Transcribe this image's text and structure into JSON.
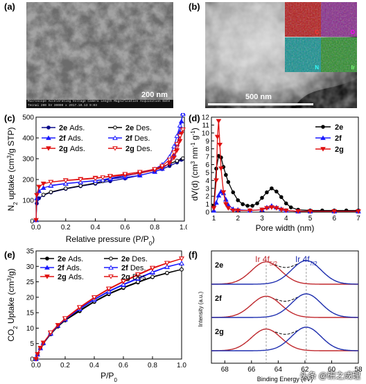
{
  "panels": {
    "a": {
      "label": "(a)",
      "scale_bar": "200 nm",
      "info_header": "Microscope Accelerating Voltage Camera Length Magnification Acquisition Date",
      "info_values": "Tecnai     200 kV     30000 x     2017.10.13  9:03"
    },
    "b": {
      "label": "(b)",
      "scale_bar": "500 nm",
      "maps": [
        {
          "element": "C",
          "color": "#d11a1a"
        },
        {
          "element": "O",
          "color": "#9b2da0"
        },
        {
          "element": "N",
          "color": "#12a6a6"
        },
        {
          "element": "Ir",
          "color": "#2fa12f"
        }
      ]
    },
    "c": {
      "label": "(c)"
    },
    "d": {
      "label": "(d)"
    },
    "e": {
      "label": "(e)"
    },
    "f": {
      "label": "(f)"
    }
  },
  "watermark": "头条 @研之成理",
  "chart_data": [
    {
      "id": "c",
      "type": "line",
      "xlabel": "Relative pressure (P/P0)",
      "xlabel_parts": {
        "main": "Relative pressure (P/P",
        "sub": "0",
        "tail": ")"
      },
      "ylabel_parts": {
        "a": "N",
        "sub1": "2",
        "b": " uptake (cm",
        "sup": "3",
        "c": "/g STP)"
      },
      "xlim": [
        0,
        1
      ],
      "ylim": [
        0,
        500
      ],
      "xticks": [
        "0.0",
        "0.2",
        "0.4",
        "0.6",
        "0.8",
        "1.0"
      ],
      "yticks": [
        "0",
        "100",
        "200",
        "300",
        "400",
        "500"
      ],
      "series": [
        {
          "name": "2e Ads.",
          "tag": "2e",
          "kind": "Ads.",
          "color": "#0a0a8a",
          "marker": "circle-filled",
          "x": [
            0.0,
            0.005,
            0.02,
            0.05,
            0.1,
            0.2,
            0.3,
            0.4,
            0.5,
            0.6,
            0.7,
            0.8,
            0.85,
            0.9,
            0.95,
            0.98,
            0.99
          ],
          "y": [
            5,
            85,
            110,
            125,
            138,
            155,
            168,
            180,
            192,
            205,
            220,
            238,
            250,
            265,
            282,
            295,
            300
          ]
        },
        {
          "name": "2e Des.",
          "tag": "2e",
          "kind": "Des.",
          "color": "#000000",
          "marker": "circle-open",
          "x": [
            0.99,
            0.95,
            0.9,
            0.85,
            0.8,
            0.7,
            0.6,
            0.5,
            0.45,
            0.4,
            0.3,
            0.2,
            0.1,
            0.05
          ],
          "y": [
            302,
            290,
            275,
            262,
            250,
            232,
            217,
            203,
            192,
            183,
            170,
            157,
            140,
            127
          ]
        },
        {
          "name": "2f Ads.",
          "tag": "2f",
          "kind": "Ads.",
          "color": "#1a1aff",
          "marker": "triangle-filled",
          "x": [
            0.0,
            0.005,
            0.02,
            0.05,
            0.1,
            0.2,
            0.3,
            0.4,
            0.5,
            0.6,
            0.7,
            0.8,
            0.85,
            0.9,
            0.93,
            0.95,
            0.97,
            0.98,
            0.99
          ],
          "y": [
            5,
            110,
            145,
            160,
            170,
            180,
            187,
            194,
            202,
            210,
            220,
            237,
            252,
            280,
            320,
            370,
            430,
            480,
            520
          ]
        },
        {
          "name": "2f Des.",
          "tag": "2f",
          "kind": "Des.",
          "color": "#1a1aff",
          "marker": "triangle-open",
          "x": [
            0.99,
            0.97,
            0.95,
            0.93,
            0.9,
            0.85,
            0.8,
            0.7,
            0.6,
            0.5,
            0.45,
            0.4,
            0.3,
            0.2,
            0.1
          ],
          "y": [
            515,
            460,
            410,
            360,
            310,
            272,
            250,
            230,
            218,
            207,
            199,
            195,
            188,
            181,
            172
          ]
        },
        {
          "name": "2g Ads.",
          "tag": "2g",
          "kind": "Ads.",
          "color": "#e01010",
          "marker": "triangle-down-filled",
          "x": [
            0.0,
            0.005,
            0.02,
            0.05,
            0.1,
            0.2,
            0.3,
            0.4,
            0.5,
            0.6,
            0.7,
            0.8,
            0.85,
            0.9,
            0.93,
            0.95,
            0.97,
            0.98,
            0.99
          ],
          "y": [
            5,
            125,
            165,
            180,
            188,
            196,
            202,
            208,
            214,
            221,
            230,
            245,
            258,
            278,
            305,
            340,
            385,
            420,
            440
          ]
        },
        {
          "name": "2g Des.",
          "tag": "2g",
          "kind": "Des.",
          "color": "#e01010",
          "marker": "triangle-down-open",
          "x": [
            0.99,
            0.97,
            0.95,
            0.93,
            0.9,
            0.85,
            0.8,
            0.7,
            0.6,
            0.5,
            0.45,
            0.4,
            0.3,
            0.2,
            0.1
          ],
          "y": [
            440,
            410,
            370,
            330,
            295,
            265,
            250,
            236,
            226,
            217,
            210,
            205,
            200,
            195,
            188
          ]
        }
      ],
      "legend": "top-left"
    },
    {
      "id": "d",
      "type": "line",
      "xlabel": "Pore width (nm)",
      "ylabel_parts": {
        "a": "dV(d) (cm",
        "sup1": "3",
        "b": " nm",
        "sup2": "-1",
        "c": " g",
        "sup3": "-1",
        "d": ")"
      },
      "xlim": [
        0.9,
        7
      ],
      "ylim": [
        0,
        12
      ],
      "xticks": [
        "1",
        "2",
        "3",
        "4",
        "5",
        "6",
        "7"
      ],
      "xtick_values": [
        1,
        2,
        3,
        4,
        5,
        6,
        7
      ],
      "yticks": [
        "0",
        "1",
        "2",
        "3",
        "4",
        "5",
        "6",
        "7",
        "8",
        "9",
        "10",
        "11",
        "12"
      ],
      "series": [
        {
          "name": "2e",
          "color": "#000000",
          "marker": "circle-filled",
          "x": [
            1.0,
            1.1,
            1.2,
            1.3,
            1.4,
            1.5,
            1.6,
            1.8,
            2.0,
            2.2,
            2.4,
            2.6,
            2.8,
            3.0,
            3.2,
            3.4,
            3.6,
            3.8,
            4.0,
            4.2,
            4.5,
            5.0,
            5.5,
            6.0,
            6.5,
            7.0
          ],
          "y": [
            0.8,
            5.5,
            7.1,
            6.9,
            5.7,
            4.7,
            3.8,
            2.5,
            1.5,
            1.0,
            0.8,
            0.8,
            1.1,
            1.8,
            2.5,
            3.0,
            2.6,
            1.9,
            1.1,
            0.6,
            0.3,
            0.2,
            0.2,
            0.2,
            0.2,
            0.2
          ]
        },
        {
          "name": "2f",
          "color": "#1a1aff",
          "marker": "triangle-filled",
          "x": [
            1.0,
            1.1,
            1.2,
            1.3,
            1.4,
            1.5,
            1.6,
            1.8,
            2.0,
            2.5,
            3.0,
            3.2,
            3.4,
            3.6,
            3.8,
            4.0,
            4.5,
            5.0,
            6.0,
            7.0
          ],
          "y": [
            0.2,
            1.2,
            2.1,
            2.6,
            2.4,
            1.6,
            0.9,
            0.4,
            0.3,
            0.2,
            0.3,
            0.6,
            0.8,
            0.6,
            0.4,
            0.2,
            0.1,
            0.1,
            0.1,
            0.1
          ]
        },
        {
          "name": "2g",
          "color": "#e01010",
          "marker": "triangle-down-filled",
          "x": [
            1.0,
            1.1,
            1.15,
            1.2,
            1.25,
            1.3,
            1.4,
            1.5,
            1.6,
            1.8,
            2.0,
            2.5,
            3.0,
            3.2,
            3.4,
            3.6,
            3.8,
            4.0,
            4.5,
            5.0,
            6.0,
            7.0
          ],
          "y": [
            0.5,
            4.0,
            9.5,
            11.5,
            8.5,
            5.5,
            2.5,
            1.0,
            0.5,
            0.2,
            0.2,
            0.2,
            0.3,
            0.5,
            0.6,
            0.5,
            0.3,
            0.2,
            0.1,
            0.1,
            0.1,
            0.1
          ]
        }
      ],
      "legend": "top-right"
    },
    {
      "id": "e",
      "type": "line",
      "xlabel_parts": {
        "main": "P/P",
        "sub": "0"
      },
      "ylabel_parts": {
        "a": "CO",
        "sub1": "2",
        "b": " Uptake (cm",
        "sup": "3",
        "c": "/g)"
      },
      "xlim": [
        0,
        1
      ],
      "ylim": [
        0,
        35
      ],
      "xticks": [
        "0.0",
        "0.2",
        "0.4",
        "0.6",
        "0.8",
        "1.0"
      ],
      "yticks": [
        "0",
        "5",
        "10",
        "15",
        "20",
        "25",
        "30",
        "35"
      ],
      "series": [
        {
          "name": "2e Ads.",
          "tag": "2e",
          "kind": "Ads.",
          "color": "#000000",
          "marker": "circle-filled",
          "x": [
            0.0,
            0.01,
            0.03,
            0.05,
            0.1,
            0.15,
            0.2,
            0.3,
            0.4,
            0.5,
            0.6,
            0.7,
            0.8,
            0.9,
            1.0
          ],
          "y": [
            0,
            1.5,
            3.5,
            5,
            8,
            10.5,
            12.5,
            15.5,
            18.5,
            21,
            23,
            24.8,
            26.5,
            27.8,
            29
          ]
        },
        {
          "name": "2e Des.",
          "tag": "2e",
          "kind": "Des.",
          "color": "#000000",
          "marker": "circle-open",
          "x": [
            1.0,
            0.9,
            0.8,
            0.7,
            0.6,
            0.5,
            0.4,
            0.3,
            0.2,
            0.1
          ],
          "y": [
            29,
            27.9,
            26.6,
            25,
            23.2,
            21.2,
            18.7,
            15.8,
            12.8,
            8.3
          ]
        },
        {
          "name": "2f Ads.",
          "tag": "2f",
          "kind": "Ads.",
          "color": "#1a1aff",
          "marker": "triangle-filled",
          "x": [
            0.0,
            0.01,
            0.03,
            0.05,
            0.1,
            0.15,
            0.2,
            0.3,
            0.4,
            0.5,
            0.6,
            0.7,
            0.8,
            0.9,
            1.0
          ],
          "y": [
            0,
            1.5,
            3.5,
            5.2,
            8.2,
            10.8,
            12.8,
            16.2,
            19.2,
            21.8,
            24,
            26,
            28,
            29.8,
            31
          ]
        },
        {
          "name": "2f Des.",
          "tag": "2f",
          "kind": "Des.",
          "color": "#1a1aff",
          "marker": "triangle-open",
          "x": [
            1.0,
            0.9,
            0.8,
            0.7,
            0.6,
            0.5,
            0.4,
            0.3,
            0.2,
            0.1
          ],
          "y": [
            31,
            29.9,
            28.2,
            26.2,
            24.2,
            22,
            19.4,
            16.4,
            13,
            8.4
          ]
        },
        {
          "name": "2g Ads.",
          "tag": "2g",
          "kind": "Ads.",
          "color": "#e01010",
          "marker": "triangle-down-filled",
          "x": [
            0.0,
            0.01,
            0.03,
            0.05,
            0.1,
            0.15,
            0.2,
            0.3,
            0.4,
            0.5,
            0.6,
            0.7,
            0.8,
            0.9,
            1.0
          ],
          "y": [
            0,
            1.6,
            3.6,
            5.3,
            8.4,
            11,
            13,
            16.6,
            19.8,
            22.6,
            25,
            27.2,
            29.3,
            31,
            32.5
          ]
        },
        {
          "name": "2g Des.",
          "tag": "2g",
          "kind": "Des.",
          "color": "#e01010",
          "marker": "triangle-down-open",
          "x": [
            1.0,
            0.9,
            0.8,
            0.7,
            0.6,
            0.5,
            0.4,
            0.3,
            0.2,
            0.1
          ],
          "y": [
            32.5,
            31.1,
            29.5,
            27.4,
            25.2,
            22.8,
            20,
            16.8,
            13.2,
            8.6
          ]
        }
      ],
      "legend": "top-left"
    },
    {
      "id": "f",
      "type": "line",
      "xlabel": "Binding Energy (eV)",
      "ylabel": "Intensity (a.u.)",
      "xlim": [
        69,
        58
      ],
      "reversed_x": true,
      "xticks": [
        "68",
        "66",
        "64",
        "62",
        "60",
        "58"
      ],
      "xtick_values": [
        68,
        66,
        64,
        62,
        60,
        58
      ],
      "peak_labels": [
        {
          "text": "Ir 4f",
          "sub": "5/2",
          "color": "#c0282d",
          "x": 64.9
        },
        {
          "text": "Ir 4f",
          "sub": "7/2",
          "color": "#1f2fb0",
          "x": 61.9
        }
      ],
      "traces": [
        {
          "name": "2e",
          "red_center": 64.9,
          "blue_center": 61.9,
          "red_amp": 0.95,
          "blue_amp": 1.0,
          "sigma": 1.1
        },
        {
          "name": "2f",
          "red_center": 64.9,
          "blue_center": 61.9,
          "red_amp": 0.9,
          "blue_amp": 1.0,
          "sigma": 1.1
        },
        {
          "name": "2g",
          "red_center": 64.9,
          "blue_center": 61.9,
          "red_amp": 0.92,
          "blue_amp": 1.0,
          "sigma": 1.1
        }
      ]
    }
  ]
}
